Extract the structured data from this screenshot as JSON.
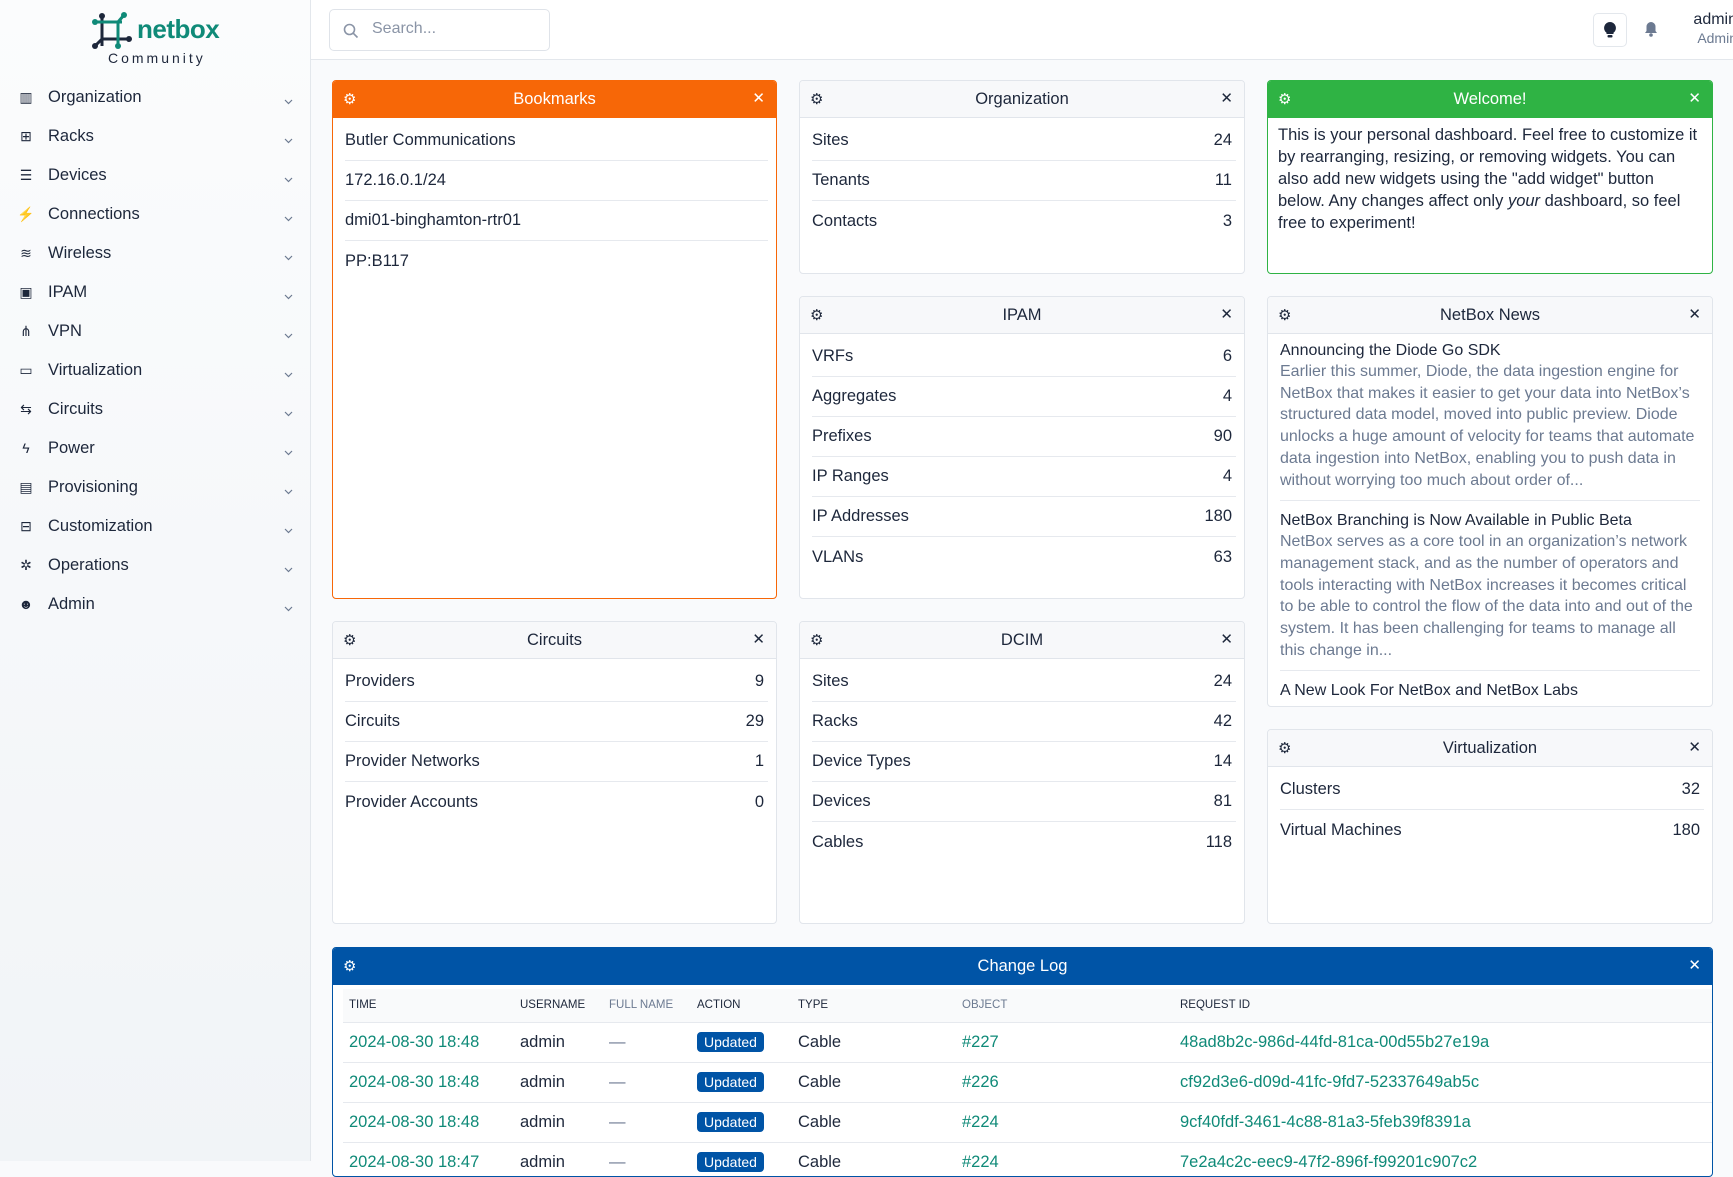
{
  "brand": {
    "name": "netbox",
    "edition": "Community"
  },
  "colors": {
    "teal": "#0f8a78",
    "orange": "#f76707",
    "green": "#2fb344",
    "blue": "#0054a6"
  },
  "sidebar": {
    "items": [
      {
        "label": "Organization",
        "icon": "building-icon"
      },
      {
        "label": "Racks",
        "icon": "rack-icon"
      },
      {
        "label": "Devices",
        "icon": "server-icon"
      },
      {
        "label": "Connections",
        "icon": "plug-icon"
      },
      {
        "label": "Wireless",
        "icon": "wifi-icon"
      },
      {
        "label": "IPAM",
        "icon": "counter-icon"
      },
      {
        "label": "VPN",
        "icon": "tunnel-icon"
      },
      {
        "label": "Virtualization",
        "icon": "monitor-icon"
      },
      {
        "label": "Circuits",
        "icon": "transit-icon"
      },
      {
        "label": "Power",
        "icon": "lightning-icon"
      },
      {
        "label": "Provisioning",
        "icon": "file-icon"
      },
      {
        "label": "Customization",
        "icon": "toolbox-icon"
      },
      {
        "label": "Operations",
        "icon": "cogs-icon"
      },
      {
        "label": "Admin",
        "icon": "users-icon"
      }
    ]
  },
  "topbar": {
    "search_placeholder": "Search...",
    "user": {
      "name": "admin",
      "role": "Admin"
    }
  },
  "widgets": {
    "bookmarks": {
      "title": "Bookmarks",
      "color": "#f76707",
      "items": [
        "Butler Communications",
        "172.16.0.1/24",
        "dmi01-binghamton-rtr01",
        "PP:B117"
      ]
    },
    "organization": {
      "title": "Organization",
      "rows": [
        {
          "label": "Sites",
          "value": "24"
        },
        {
          "label": "Tenants",
          "value": "11"
        },
        {
          "label": "Contacts",
          "value": "3"
        }
      ]
    },
    "welcome": {
      "title": "Welcome!",
      "color": "#2fb344",
      "text_before": "This is your personal dashboard. Feel free to customize it by rearranging, resizing, or removing widgets. You can also add new widgets using the \"add widget\" button below. Any changes affect only ",
      "text_em": "your",
      "text_after": " dashboard, so feel free to experiment!"
    },
    "ipam": {
      "title": "IPAM",
      "rows": [
        {
          "label": "VRFs",
          "value": "6"
        },
        {
          "label": "Aggregates",
          "value": "4"
        },
        {
          "label": "Prefixes",
          "value": "90"
        },
        {
          "label": "IP Ranges",
          "value": "4"
        },
        {
          "label": "IP Addresses",
          "value": "180"
        },
        {
          "label": "VLANs",
          "value": "63"
        }
      ]
    },
    "news": {
      "title": "NetBox News",
      "items": [
        {
          "title": "Announcing the Diode Go SDK",
          "body": "Earlier this summer, Diode, the data ingestion engine for NetBox that makes it easier to get your data into NetBox’s structured data model, moved into public preview. Diode unlocks a huge amount of velocity for teams that automate data ingestion into NetBox, enabling you to push data in without worrying too much about order of..."
        },
        {
          "title": "NetBox Branching is Now Available in Public Beta",
          "body": "NetBox serves as a core tool in an organization’s network management stack, and as the number of operators and tools interacting with NetBox increases it becomes critical to be able to control the flow of the data into and out of the system. It has been challenging for teams to manage all this change in..."
        },
        {
          "title": "A New Look For NetBox and NetBox Labs",
          "body": ""
        }
      ]
    },
    "circuits": {
      "title": "Circuits",
      "rows": [
        {
          "label": "Providers",
          "value": "9"
        },
        {
          "label": "Circuits",
          "value": "29"
        },
        {
          "label": "Provider Networks",
          "value": "1"
        },
        {
          "label": "Provider Accounts",
          "value": "0"
        }
      ]
    },
    "dcim": {
      "title": "DCIM",
      "rows": [
        {
          "label": "Sites",
          "value": "24"
        },
        {
          "label": "Racks",
          "value": "42"
        },
        {
          "label": "Device Types",
          "value": "14"
        },
        {
          "label": "Devices",
          "value": "81"
        },
        {
          "label": "Cables",
          "value": "118"
        }
      ]
    },
    "virtualization": {
      "title": "Virtualization",
      "rows": [
        {
          "label": "Clusters",
          "value": "32"
        },
        {
          "label": "Virtual Machines",
          "value": "180"
        }
      ]
    },
    "changelog": {
      "title": "Change Log",
      "color": "#0054a6",
      "columns": [
        "TIME",
        "USERNAME",
        "FULL NAME",
        "ACTION",
        "TYPE",
        "OBJECT",
        "REQUEST ID"
      ],
      "rows": [
        {
          "time": "2024-08-30 18:48",
          "username": "admin",
          "full_name": "—",
          "action": "Updated",
          "type": "Cable",
          "object": "#227",
          "request_id": "48ad8b2c-986d-44fd-81ca-00d55b27e19a"
        },
        {
          "time": "2024-08-30 18:48",
          "username": "admin",
          "full_name": "—",
          "action": "Updated",
          "type": "Cable",
          "object": "#226",
          "request_id": "cf92d3e6-d09d-41fc-9fd7-52337649ab5c"
        },
        {
          "time": "2024-08-30 18:48",
          "username": "admin",
          "full_name": "—",
          "action": "Updated",
          "type": "Cable",
          "object": "#224",
          "request_id": "9cf40fdf-3461-4c88-81a3-5feb39f8391a"
        },
        {
          "time": "2024-08-30 18:47",
          "username": "admin",
          "full_name": "—",
          "action": "Updated",
          "type": "Cable",
          "object": "#224",
          "request_id": "7e2a4c2c-eec9-47f2-896f-f99201c907c2"
        }
      ]
    }
  }
}
